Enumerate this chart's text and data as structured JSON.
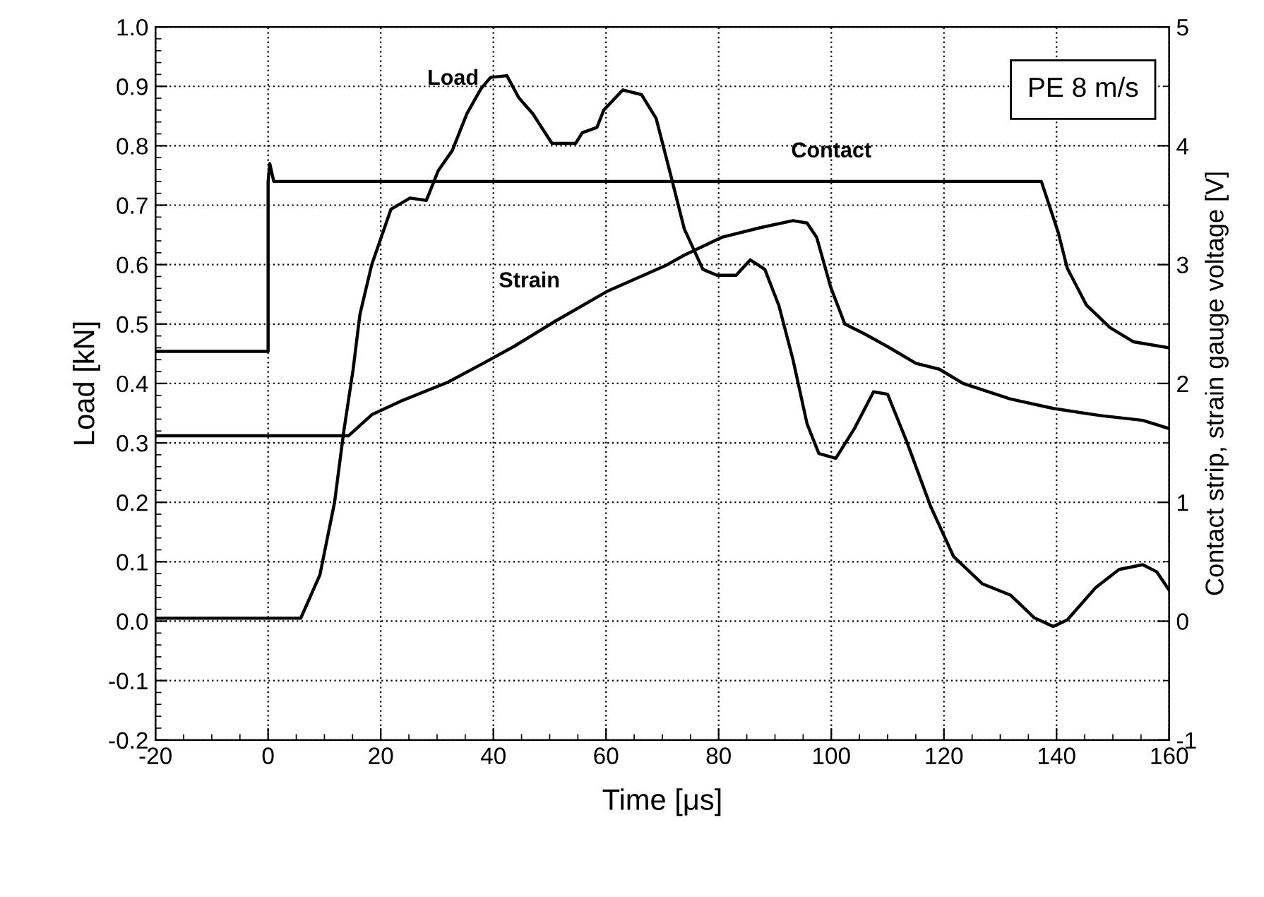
{
  "chart_data": {
    "type": "line",
    "xlabel": "Time [μs]",
    "ylabel": "Load [kN]",
    "y2label": "Contact strip, strain gauge voltage [V]",
    "xlim": [
      -20,
      160
    ],
    "xticks": [
      -20,
      0,
      20,
      40,
      60,
      80,
      100,
      120,
      140,
      160
    ],
    "ylim": [
      -0.2,
      1.0
    ],
    "yticks": [
      {
        "value": -0.2,
        "label": "-0.2"
      },
      {
        "value": -0.1,
        "label": "-0.1"
      },
      {
        "value": 0.0,
        "label": "0.0"
      },
      {
        "value": 0.1,
        "label": "0.1"
      },
      {
        "value": 0.2,
        "label": "0.2"
      },
      {
        "value": 0.3,
        "label": "0.3"
      },
      {
        "value": 0.4,
        "label": "0.4"
      },
      {
        "value": 0.5,
        "label": "0.5"
      },
      {
        "value": 0.6,
        "label": "0.6"
      },
      {
        "value": 0.7,
        "label": "0.7"
      },
      {
        "value": 0.8,
        "label": "0.8"
      },
      {
        "value": 0.9,
        "label": "0.9"
      },
      {
        "value": 1.0,
        "label": "1.0"
      }
    ],
    "y2lim": [
      -1,
      5
    ],
    "y2ticks": [
      -1,
      0,
      1,
      2,
      3,
      4,
      5
    ],
    "grid": true,
    "legend": false,
    "marker": "none",
    "line_style": "solid",
    "annotations": [
      "PE 8 m/s"
    ],
    "series": [
      {
        "name": "Load",
        "color": "#000000",
        "x": [
          -20,
          5.8,
          9.2,
          11.8,
          13.4,
          15.1,
          16.3,
          18.4,
          21.8,
          25.2,
          28.1,
          30.2,
          32.7,
          35.3,
          37.8,
          39.5,
          42.4,
          44.5,
          47,
          50.4,
          54.6,
          55.8,
          58.4,
          59.6,
          63,
          66.3,
          68.9,
          71.4,
          73.9,
          77.2,
          79.7,
          83.1,
          85.6,
          88.2,
          90.7,
          93.2,
          95.7,
          97.8,
          100.8,
          104.1,
          107.5,
          110,
          113.4,
          117.6,
          121.7,
          126.8,
          131.8,
          136,
          139.4,
          141.9,
          146.9,
          151.1,
          155.3,
          157.8,
          160
        ],
        "values": [
          0.005,
          0.005,
          0.078,
          0.2,
          0.317,
          0.424,
          0.516,
          0.6,
          0.693,
          0.712,
          0.708,
          0.758,
          0.792,
          0.854,
          0.896,
          0.915,
          0.918,
          0.881,
          0.854,
          0.804,
          0.804,
          0.822,
          0.831,
          0.86,
          0.894,
          0.886,
          0.846,
          0.754,
          0.66,
          0.592,
          0.582,
          0.582,
          0.608,
          0.592,
          0.531,
          0.44,
          0.332,
          0.282,
          0.274,
          0.324,
          0.386,
          0.382,
          0.302,
          0.194,
          0.109,
          0.063,
          0.044,
          0.006,
          -0.009,
          0.002,
          0.056,
          0.087,
          0.095,
          0.083,
          0.052
        ]
      },
      {
        "name": "Contact",
        "color": "#000000",
        "axis": "y2",
        "x": [
          -20,
          0,
          0,
          0.3,
          1,
          50,
          100,
          137.3,
          140.3,
          141.9,
          145.3,
          149.5,
          153.7,
          160
        ],
        "values": [
          2.27,
          2.27,
          3.7,
          3.85,
          3.7,
          3.7,
          3.7,
          3.7,
          3.27,
          2.97,
          2.66,
          2.47,
          2.35,
          2.3
        ]
      },
      {
        "name": "Strain",
        "color": "#000000",
        "axis": "y2",
        "x": [
          -20,
          14.3,
          18.5,
          23.5,
          31.9,
          38.6,
          43.6,
          51.2,
          60.4,
          70.5,
          73.9,
          80.6,
          87.3,
          93.2,
          95.7,
          97.4,
          99.9,
          102.4,
          105.8,
          110,
          115,
          119.2,
          123.4,
          131.8,
          139.4,
          147.8,
          155.3,
          160
        ],
        "values": [
          1.56,
          1.56,
          1.74,
          1.85,
          2.01,
          2.18,
          2.31,
          2.53,
          2.78,
          2.99,
          3.08,
          3.23,
          3.31,
          3.37,
          3.35,
          3.23,
          2.81,
          2.5,
          2.42,
          2.31,
          2.17,
          2.12,
          2.0,
          1.87,
          1.79,
          1.73,
          1.69,
          1.62
        ]
      }
    ]
  }
}
